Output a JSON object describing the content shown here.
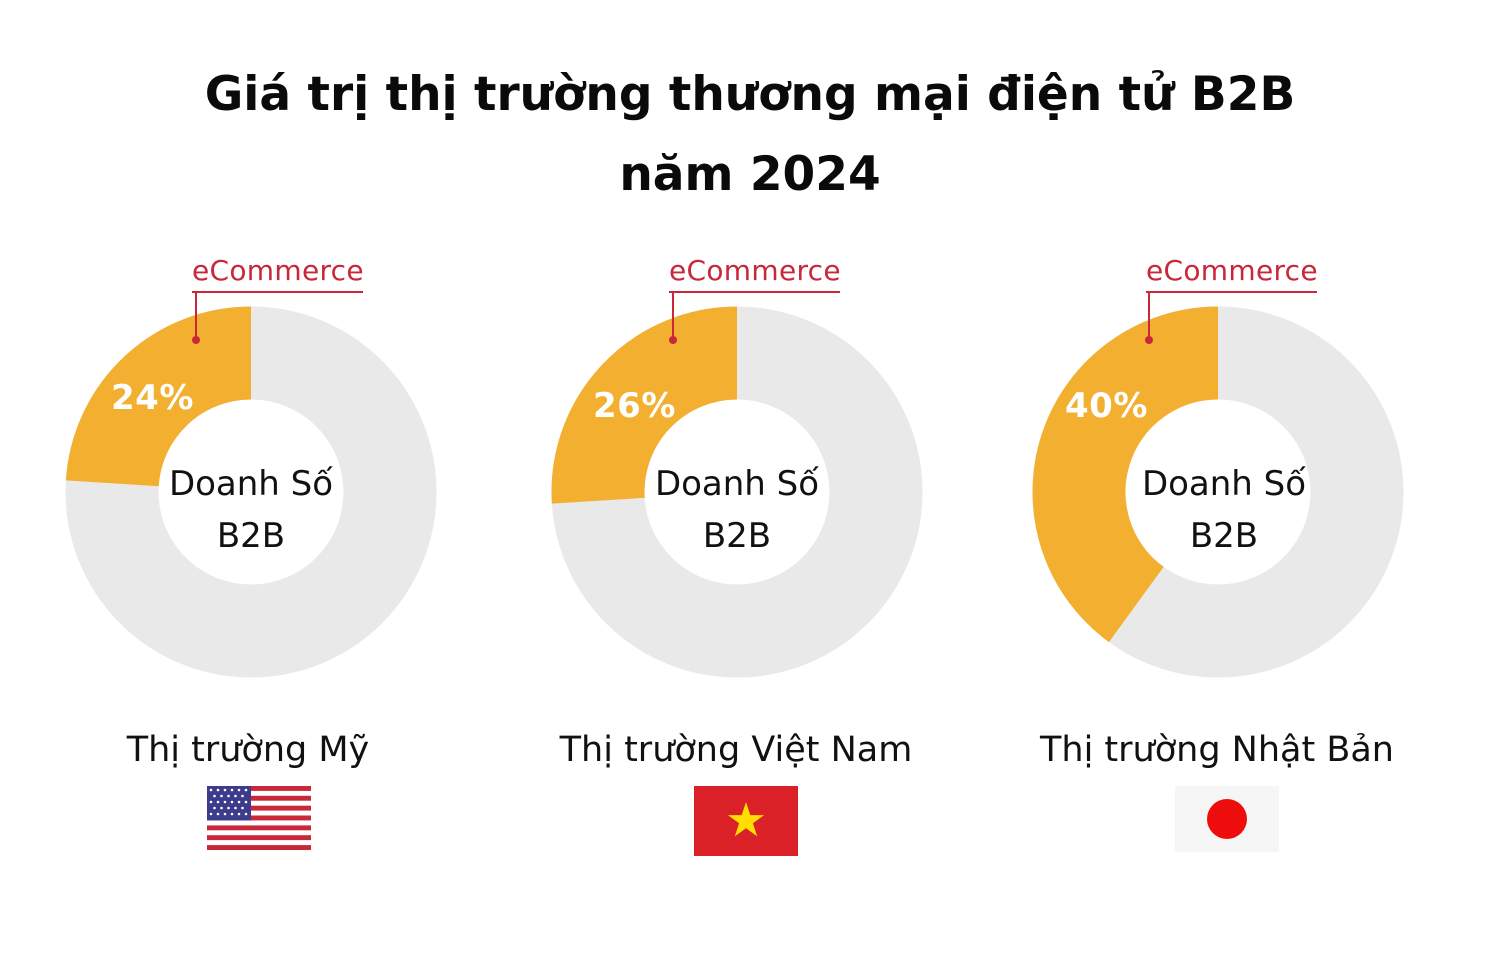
{
  "title": {
    "line1": "Giá trị thị trường thương mại điện tử B2B",
    "line2": "năm 2024"
  },
  "chart_data": [
    {
      "type": "pie",
      "categories": [
        "eCommerce",
        "Doanh Số B2B"
      ],
      "values": [
        24,
        76
      ],
      "value_label": "24%",
      "segment_label": "eCommerce",
      "center_label": [
        "Doanh Số",
        "B2B"
      ],
      "market": "Thị trường Mỹ",
      "flag": "us-flag-icon"
    },
    {
      "type": "pie",
      "categories": [
        "eCommerce",
        "Doanh Số B2B"
      ],
      "values": [
        26,
        74
      ],
      "value_label": "26%",
      "segment_label": "eCommerce",
      "center_label": [
        "Doanh Số",
        "B2B"
      ],
      "market": "Thị trường Việt Nam",
      "flag": "vietnam-flag-icon"
    },
    {
      "type": "pie",
      "categories": [
        "eCommerce",
        "Doanh Số B2B"
      ],
      "values": [
        40,
        60
      ],
      "value_label": "40%",
      "segment_label": "eCommerce",
      "center_label": [
        "Doanh Số",
        "B2B"
      ],
      "market": "Thị trường Nhật Bản",
      "flag": "japan-flag-icon"
    }
  ],
  "colors": {
    "ecommerce": "#f2af30",
    "remainder": "#e9e9e9",
    "callout": "#c8283a"
  }
}
